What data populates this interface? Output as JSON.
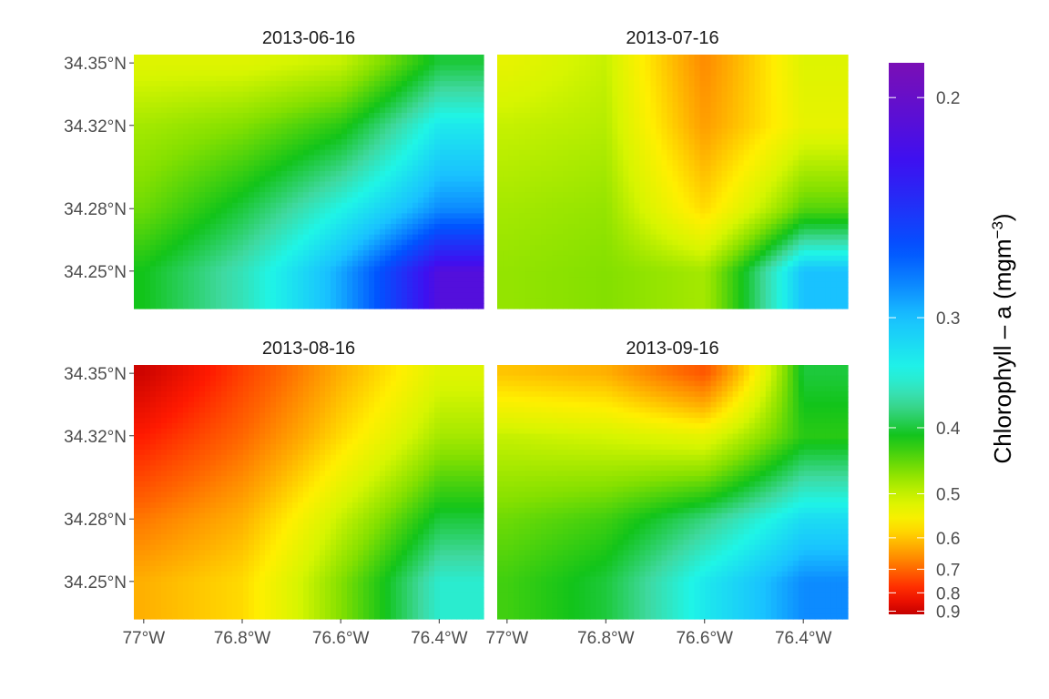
{
  "chart_data": {
    "type": "heatmap",
    "title": "",
    "x_ticks": [
      "77°W",
      "76.8°W",
      "76.6°W",
      "76.4°W"
    ],
    "x_tick_values": [
      -77.0,
      -76.8,
      -76.6,
      -76.4
    ],
    "y_ticks": [
      "34.25°N",
      "34.28°N",
      "34.32°N",
      "34.35°N"
    ],
    "y_tick_values": [
      34.25,
      34.28,
      34.32,
      34.35
    ],
    "xlim": [
      -77.02,
      -76.31
    ],
    "ylim": [
      34.232,
      34.354
    ],
    "legend": {
      "placement": "right",
      "title_main": "Chlorophyll – a (mgm",
      "title_sup": "−3",
      "title_end": ")",
      "scale": "reciprocal",
      "ticks": [
        "0.2",
        "0.3",
        "0.4",
        "0.5",
        "0.6",
        "0.7",
        "0.8",
        "0.9"
      ],
      "tick_values": [
        0.2,
        0.3,
        0.4,
        0.5,
        0.6,
        0.7,
        0.8,
        0.9
      ],
      "range": [
        0.19,
        0.92
      ]
    },
    "colormap": [
      {
        "v": 0.19,
        "c": "#7a0fb5"
      },
      {
        "v": 0.22,
        "c": "#3f0ff0"
      },
      {
        "v": 0.26,
        "c": "#0054ff"
      },
      {
        "v": 0.3,
        "c": "#19c2ff"
      },
      {
        "v": 0.34,
        "c": "#1ff5e6"
      },
      {
        "v": 0.37,
        "c": "#3fd9a0"
      },
      {
        "v": 0.41,
        "c": "#12c41a"
      },
      {
        "v": 0.46,
        "c": "#84e000"
      },
      {
        "v": 0.51,
        "c": "#d6f500"
      },
      {
        "v": 0.56,
        "c": "#ffef00"
      },
      {
        "v": 0.62,
        "c": "#ffb000"
      },
      {
        "v": 0.7,
        "c": "#ff6600"
      },
      {
        "v": 0.8,
        "c": "#ff1a00"
      },
      {
        "v": 0.92,
        "c": "#c40000"
      }
    ],
    "grid_lon": [
      -77.0,
      -76.8,
      -76.6,
      -76.4
    ],
    "grid_lat": [
      34.35,
      34.32,
      34.28,
      34.25
    ],
    "panels": [
      {
        "date": "2013-06-16",
        "values": [
          [
            0.52,
            0.52,
            0.5,
            0.4
          ],
          [
            0.48,
            0.46,
            0.42,
            0.33
          ],
          [
            0.45,
            0.4,
            0.34,
            0.28
          ],
          [
            0.41,
            0.36,
            0.29,
            0.21
          ]
        ]
      },
      {
        "date": "2013-07-16",
        "values": [
          [
            0.53,
            0.5,
            0.66,
            0.52
          ],
          [
            0.5,
            0.49,
            0.64,
            0.53
          ],
          [
            0.48,
            0.47,
            0.58,
            0.44
          ],
          [
            0.47,
            0.46,
            0.48,
            0.3
          ]
        ]
      },
      {
        "date": "2013-08-16",
        "values": [
          [
            0.9,
            0.75,
            0.62,
            0.52
          ],
          [
            0.8,
            0.7,
            0.58,
            0.48
          ],
          [
            0.68,
            0.62,
            0.5,
            0.4
          ],
          [
            0.62,
            0.58,
            0.46,
            0.35
          ]
        ]
      },
      {
        "date": "2013-09-16",
        "values": [
          [
            0.6,
            0.62,
            0.72,
            0.4
          ],
          [
            0.5,
            0.51,
            0.53,
            0.42
          ],
          [
            0.45,
            0.43,
            0.38,
            0.32
          ],
          [
            0.43,
            0.4,
            0.33,
            0.28
          ]
        ]
      }
    ]
  }
}
